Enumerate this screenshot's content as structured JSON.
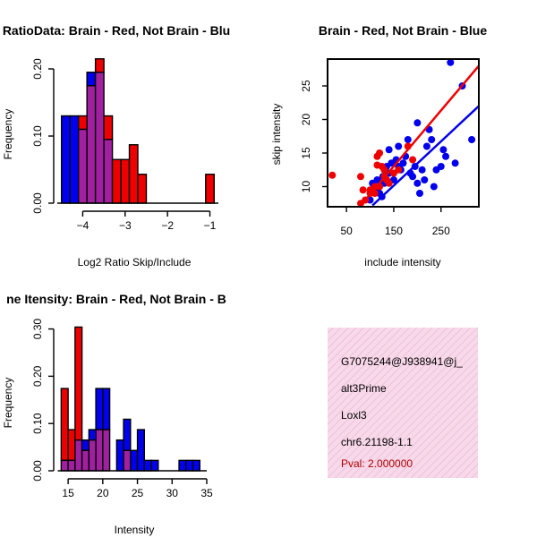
{
  "chart_data": [
    {
      "type": "bar",
      "title": "RatioData: Brain - Red, Not Brain - Blu",
      "xlabel": "Log2 Ratio Skip/Include",
      "ylabel": "Frequency",
      "xlim": [
        -4.6,
        -0.8
      ],
      "ylim": [
        0,
        0.22
      ],
      "xticks": [
        -4,
        -3,
        -2,
        -1
      ],
      "xtick_labels": [
        "−4",
        "−3",
        "−2",
        "−1"
      ],
      "yticks": [
        0,
        0.1,
        0.2
      ],
      "ytick_labels": [
        "0.00",
        "0.10",
        "0.20"
      ],
      "series": [
        {
          "name": "Not Brain",
          "color": "#0000ee",
          "bins": [
            {
              "x0": -4.5,
              "x1": -4.3,
              "value": 0.13
            },
            {
              "x0": -4.3,
              "x1": -4.1,
              "value": 0.13
            },
            {
              "x0": -4.1,
              "x1": -3.9,
              "value": 0.11
            },
            {
              "x0": -3.9,
              "x1": -3.7,
              "value": 0.195
            },
            {
              "x0": -3.7,
              "x1": -3.5,
              "value": 0.195
            },
            {
              "x0": -3.5,
              "x1": -3.3,
              "value": 0.095
            }
          ]
        },
        {
          "name": "Brain",
          "color": "#ee0000",
          "bins": [
            {
              "x0": -4.1,
              "x1": -3.9,
              "value": 0.13
            },
            {
              "x0": -3.9,
              "x1": -3.7,
              "value": 0.175
            },
            {
              "x0": -3.7,
              "x1": -3.5,
              "value": 0.215
            },
            {
              "x0": -3.5,
              "x1": -3.3,
              "value": 0.13
            },
            {
              "x0": -3.3,
              "x1": -3.1,
              "value": 0.065
            },
            {
              "x0": -3.1,
              "x1": -2.9,
              "value": 0.065
            },
            {
              "x0": -2.9,
              "x1": -2.7,
              "value": 0.087
            },
            {
              "x0": -2.7,
              "x1": -2.5,
              "value": 0.043
            },
            {
              "x0": -1.1,
              "x1": -0.9,
              "value": 0.043
            }
          ]
        }
      ]
    },
    {
      "type": "scatter",
      "title": "Brain - Red, Not Brain - Blue",
      "xlabel": "include intensity",
      "ylabel": "skip intensity",
      "xlim": [
        10,
        330
      ],
      "ylim": [
        7,
        29
      ],
      "xticks": [
        50,
        150,
        250
      ],
      "xtick_labels": [
        "50",
        "150",
        "250"
      ],
      "yticks": [
        10,
        15,
        20,
        25
      ],
      "ytick_labels": [
        "10",
        "15",
        "20",
        "25"
      ],
      "series": [
        {
          "name": "Brain",
          "color": "#ee0000",
          "points": [
            [
              20,
              11.7
            ],
            [
              80,
              11.5
            ],
            [
              85,
              9.5
            ],
            [
              80,
              7.5
            ],
            [
              90,
              8.0
            ],
            [
              100,
              9.0
            ],
            [
              100,
              9.5
            ],
            [
              105,
              9.2
            ],
            [
              110,
              10.0
            ],
            [
              110,
              9.0
            ],
            [
              115,
              13.2
            ],
            [
              115,
              14.5
            ],
            [
              120,
              15.0
            ],
            [
              125,
              13.0
            ],
            [
              130,
              12.5
            ],
            [
              130,
              11.5
            ],
            [
              140,
              10.5
            ],
            [
              150,
              12.0
            ],
            [
              160,
              12.5
            ],
            [
              180,
              16.0
            ],
            [
              190,
              14.0
            ],
            [
              120,
              10.0
            ],
            [
              135,
              11.0
            ]
          ],
          "fit": [
            [
              80,
              7.2
            ],
            [
              330,
              28.0
            ]
          ]
        },
        {
          "name": "Not Brain",
          "color": "#0000ee",
          "points": [
            [
              105,
              10.5
            ],
            [
              110,
              10.0
            ],
            [
              115,
              11.0
            ],
            [
              120,
              9.0
            ],
            [
              125,
              8.5
            ],
            [
              130,
              10.5
            ],
            [
              135,
              13.0
            ],
            [
              140,
              12.0
            ],
            [
              140,
              15.5
            ],
            [
              145,
              13.5
            ],
            [
              150,
              11.0
            ],
            [
              155,
              14.0
            ],
            [
              160,
              13.0
            ],
            [
              165,
              12.5
            ],
            [
              170,
              13.5
            ],
            [
              175,
              14.5
            ],
            [
              180,
              17.0
            ],
            [
              185,
              12.0
            ],
            [
              190,
              11.5
            ],
            [
              195,
              13.0
            ],
            [
              200,
              19.5
            ],
            [
              200,
              10.5
            ],
            [
              205,
              9.0
            ],
            [
              210,
              12.5
            ],
            [
              215,
              11.0
            ],
            [
              220,
              16.0
            ],
            [
              225,
              18.5
            ],
            [
              230,
              17.0
            ],
            [
              235,
              10.0
            ],
            [
              240,
              12.5
            ],
            [
              250,
              13.0
            ],
            [
              255,
              15.5
            ],
            [
              260,
              14.5
            ],
            [
              270,
              28.5
            ],
            [
              280,
              13.5
            ],
            [
              295,
              25.0
            ],
            [
              315,
              17.0
            ],
            [
              100,
              8.0
            ],
            [
              112,
              9.5
            ],
            [
              127,
              11.5
            ],
            [
              160,
              16.0
            ]
          ],
          "fit": [
            [
              105,
              7.2
            ],
            [
              330,
              22.0
            ]
          ]
        }
      ]
    },
    {
      "type": "bar",
      "title": "ne Itensity: Brain - Red, Not Brain - B",
      "xlabel": "Intensity",
      "ylabel": "Frequency",
      "xlim": [
        13.5,
        35
      ],
      "ylim": [
        0,
        0.32
      ],
      "xticks": [
        15,
        20,
        25,
        30,
        35
      ],
      "xtick_labels": [
        "15",
        "20",
        "25",
        "30",
        "35"
      ],
      "yticks": [
        0,
        0.1,
        0.2,
        0.3
      ],
      "ytick_labels": [
        "0.00",
        "0.10",
        "0.20",
        "0.30"
      ],
      "series": [
        {
          "name": "Not Brain",
          "color": "#0000ee",
          "bins": [
            {
              "x0": 14,
              "x1": 15,
              "value": 0.022
            },
            {
              "x0": 15,
              "x1": 16,
              "value": 0.022
            },
            {
              "x0": 16,
              "x1": 17,
              "value": 0.065
            },
            {
              "x0": 17,
              "x1": 18,
              "value": 0.065
            },
            {
              "x0": 18,
              "x1": 19,
              "value": 0.087
            },
            {
              "x0": 19,
              "x1": 20,
              "value": 0.174
            },
            {
              "x0": 20,
              "x1": 21,
              "value": 0.174
            },
            {
              "x0": 22,
              "x1": 23,
              "value": 0.065
            },
            {
              "x0": 23,
              "x1": 24,
              "value": 0.109
            },
            {
              "x0": 24,
              "x1": 25,
              "value": 0.043
            },
            {
              "x0": 25,
              "x1": 26,
              "value": 0.087
            },
            {
              "x0": 26,
              "x1": 27,
              "value": 0.022
            },
            {
              "x0": 27,
              "x1": 28,
              "value": 0.022
            },
            {
              "x0": 31,
              "x1": 32,
              "value": 0.022
            },
            {
              "x0": 32,
              "x1": 33,
              "value": 0.022
            },
            {
              "x0": 33,
              "x1": 34,
              "value": 0.022
            }
          ]
        },
        {
          "name": "Brain",
          "color": "#ee0000",
          "bins": [
            {
              "x0": 14,
              "x1": 15,
              "value": 0.174
            },
            {
              "x0": 15,
              "x1": 16,
              "value": 0.087
            },
            {
              "x0": 16,
              "x1": 17,
              "value": 0.304
            },
            {
              "x0": 17,
              "x1": 18,
              "value": 0.043
            },
            {
              "x0": 18,
              "x1": 19,
              "value": 0.065
            },
            {
              "x0": 19,
              "x1": 20,
              "value": 0.087
            },
            {
              "x0": 20,
              "x1": 21,
              "value": 0.087
            },
            {
              "x0": 23,
              "x1": 24,
              "value": 0.043
            }
          ]
        }
      ]
    }
  ],
  "info_panel": {
    "id": "G7075244@J938941@j_",
    "event_type": "alt3Prime",
    "gene": "Loxl3",
    "location": "chr6.21198-1.1",
    "pval": "Pval: 2.000000",
    "bg_color": "#f7d9ea",
    "pval_color": "#b00000"
  },
  "colors": {
    "overlap": "#a020a0",
    "axis": "#000000"
  }
}
